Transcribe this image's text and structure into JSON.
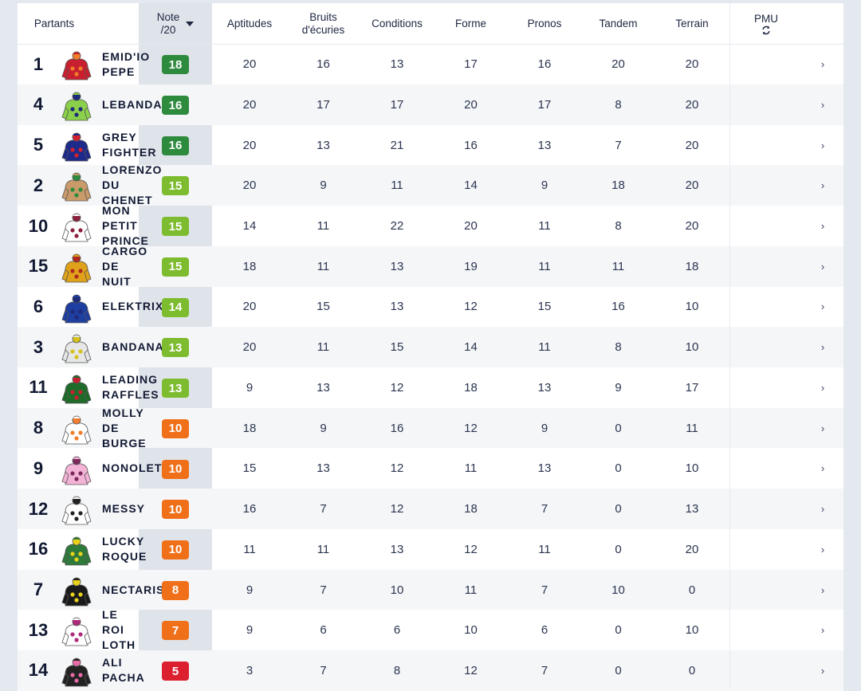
{
  "header": {
    "partants": "Partants",
    "note_line1": "Note",
    "note_line2": "/20",
    "aptitudes": "Aptitudes",
    "bruits_line1": "Bruits",
    "bruits_line2": "d'écuries",
    "conditions": "Conditions",
    "forme": "Forme",
    "pronos": "Pronos",
    "tandem": "Tandem",
    "terrain": "Terrain",
    "pmu": "PMU",
    "pmu_icon": "refresh-icon",
    "sort_icon": "caret-down-icon"
  },
  "colors": {
    "green_dark": "#2e8b3e",
    "green_light": "#7dbb2f",
    "orange": "#f0701a",
    "red": "#dd2030"
  },
  "rows": [
    {
      "num": "1",
      "name": [
        "EMID'IO",
        "PEPE"
      ],
      "note": "18",
      "tier": "green_dark",
      "aptitudes": "20",
      "bruits": "16",
      "conditions": "13",
      "forme": "17",
      "pronos": "16",
      "tandem": "20",
      "terrain": "20",
      "silk": [
        "#c8202e",
        "#f27d2b"
      ],
      "chevron": "›"
    },
    {
      "num": "4",
      "name": [
        "LEBANDAO"
      ],
      "note": "16",
      "tier": "green_dark",
      "aptitudes": "20",
      "bruits": "17",
      "conditions": "17",
      "forme": "20",
      "pronos": "17",
      "tandem": "8",
      "terrain": "20",
      "silk": [
        "#8bd04a",
        "#1e2a7a"
      ],
      "chevron": "›"
    },
    {
      "num": "5",
      "name": [
        "GREY",
        "FIGHTER"
      ],
      "note": "16",
      "tier": "green_dark",
      "aptitudes": "20",
      "bruits": "13",
      "conditions": "21",
      "forme": "16",
      "pronos": "13",
      "tandem": "7",
      "terrain": "20",
      "silk": [
        "#1e2a8a",
        "#d3202e"
      ],
      "chevron": "›"
    },
    {
      "num": "2",
      "name": [
        "LORENZO",
        "DU",
        "CHENET"
      ],
      "note": "15",
      "tier": "green_light",
      "aptitudes": "20",
      "bruits": "9",
      "conditions": "11",
      "forme": "14",
      "pronos": "9",
      "tandem": "18",
      "terrain": "20",
      "silk": [
        "#c99b6b",
        "#2e8b3e"
      ],
      "chevron": "›"
    },
    {
      "num": "10",
      "name": [
        "MON",
        "PETIT",
        "PRINCE"
      ],
      "note": "15",
      "tier": "green_light",
      "aptitudes": "14",
      "bruits": "11",
      "conditions": "22",
      "forme": "20",
      "pronos": "11",
      "tandem": "8",
      "terrain": "20",
      "silk": [
        "#ffffff",
        "#8a1f3c"
      ],
      "chevron": "›"
    },
    {
      "num": "15",
      "name": [
        "CARGO",
        "DE",
        "NUIT"
      ],
      "note": "15",
      "tier": "green_light",
      "aptitudes": "18",
      "bruits": "11",
      "conditions": "13",
      "forme": "19",
      "pronos": "11",
      "tandem": "11",
      "terrain": "18",
      "silk": [
        "#e0a21a",
        "#b0281e"
      ],
      "chevron": "›"
    },
    {
      "num": "6",
      "name": [
        "ELEKTRIX"
      ],
      "note": "14",
      "tier": "green_light",
      "aptitudes": "20",
      "bruits": "15",
      "conditions": "13",
      "forme": "12",
      "pronos": "15",
      "tandem": "16",
      "terrain": "10",
      "silk": [
        "#1e3ea0",
        "#1e2a7a"
      ],
      "chevron": "›"
    },
    {
      "num": "3",
      "name": [
        "BANDANA"
      ],
      "note": "13",
      "tier": "green_light",
      "aptitudes": "20",
      "bruits": "11",
      "conditions": "15",
      "forme": "14",
      "pronos": "11",
      "tandem": "8",
      "terrain": "10",
      "silk": [
        "#e6e6e6",
        "#d4c21a"
      ],
      "chevron": "›"
    },
    {
      "num": "11",
      "name": [
        "LEADING",
        "RAFFLES"
      ],
      "note": "13",
      "tier": "green_light",
      "aptitudes": "9",
      "bruits": "13",
      "conditions": "12",
      "forme": "18",
      "pronos": "13",
      "tandem": "9",
      "terrain": "17",
      "silk": [
        "#1f6b2a",
        "#c8202e"
      ],
      "chevron": "›"
    },
    {
      "num": "8",
      "name": [
        "MOLLY",
        "DE",
        "BURGE"
      ],
      "note": "10",
      "tier": "orange",
      "aptitudes": "18",
      "bruits": "9",
      "conditions": "16",
      "forme": "12",
      "pronos": "9",
      "tandem": "0",
      "terrain": "11",
      "silk": [
        "#ffffff",
        "#f27d2b"
      ],
      "chevron": "›"
    },
    {
      "num": "9",
      "name": [
        "NONOLETA"
      ],
      "note": "10",
      "tier": "orange",
      "aptitudes": "15",
      "bruits": "13",
      "conditions": "12",
      "forme": "11",
      "pronos": "13",
      "tandem": "0",
      "terrain": "10",
      "silk": [
        "#f3b3d6",
        "#7a2a5a"
      ],
      "chevron": "›"
    },
    {
      "num": "12",
      "name": [
        "MESSY"
      ],
      "note": "10",
      "tier": "orange",
      "aptitudes": "16",
      "bruits": "7",
      "conditions": "12",
      "forme": "18",
      "pronos": "7",
      "tandem": "0",
      "terrain": "13",
      "silk": [
        "#ffffff",
        "#222222"
      ],
      "chevron": "›"
    },
    {
      "num": "16",
      "name": [
        "LUCKY",
        "ROQUE"
      ],
      "note": "10",
      "tier": "orange",
      "aptitudes": "11",
      "bruits": "11",
      "conditions": "13",
      "forme": "12",
      "pronos": "11",
      "tandem": "0",
      "terrain": "20",
      "silk": [
        "#2e7a3a",
        "#e8d21a"
      ],
      "chevron": "›"
    },
    {
      "num": "7",
      "name": [
        "NECTARIS"
      ],
      "note": "8",
      "tier": "orange",
      "aptitudes": "9",
      "bruits": "7",
      "conditions": "10",
      "forme": "11",
      "pronos": "7",
      "tandem": "10",
      "terrain": "0",
      "silk": [
        "#1a1a1a",
        "#e8d21a"
      ],
      "chevron": "›"
    },
    {
      "num": "13",
      "name": [
        "LE",
        "ROI",
        "LOTH"
      ],
      "note": "7",
      "tier": "orange",
      "aptitudes": "9",
      "bruits": "6",
      "conditions": "6",
      "forme": "10",
      "pronos": "6",
      "tandem": "0",
      "terrain": "10",
      "silk": [
        "#ffffff",
        "#b0287a"
      ],
      "chevron": "›"
    },
    {
      "num": "14",
      "name": [
        "ALI",
        "PACHA"
      ],
      "note": "5",
      "tier": "red",
      "aptitudes": "3",
      "bruits": "7",
      "conditions": "8",
      "forme": "12",
      "pronos": "7",
      "tandem": "0",
      "terrain": "0",
      "silk": [
        "#222222",
        "#e86aa8"
      ],
      "chevron": "›"
    }
  ]
}
